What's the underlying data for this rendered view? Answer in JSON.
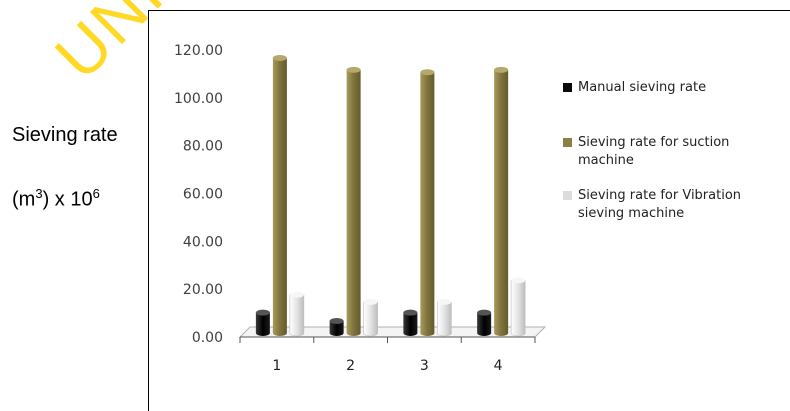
{
  "chart_data": {
    "type": "bar",
    "ylabel_line1": "Sieving rate",
    "ylabel_line2_base": "(m",
    "ylabel_line2_sup1": "3",
    "ylabel_line2_mid": ") x 10",
    "ylabel_line2_sup2": "6",
    "categories": [
      "1",
      "2",
      "3",
      "4"
    ],
    "yticks": [
      "0.00",
      "20.00",
      "40.00",
      "60.00",
      "80.00",
      "100.00",
      "120.00"
    ],
    "ylim": [
      0,
      120
    ],
    "grid": false,
    "legend_position": "right",
    "series": [
      {
        "name": "Manual sieving rate",
        "color": "#0a0a0a",
        "values": [
          8.5,
          5.0,
          8.5,
          8.5
        ]
      },
      {
        "name": "Sieving rate for suction machine",
        "color": "#8c7f45",
        "values": [
          115,
          110,
          109,
          110
        ]
      },
      {
        "name": "Sieving rate for Vibration sieving machine",
        "color": "#e6e6e6",
        "values": [
          16,
          13,
          13,
          22
        ]
      }
    ]
  },
  "watermark_text": "UNIVERSITY"
}
